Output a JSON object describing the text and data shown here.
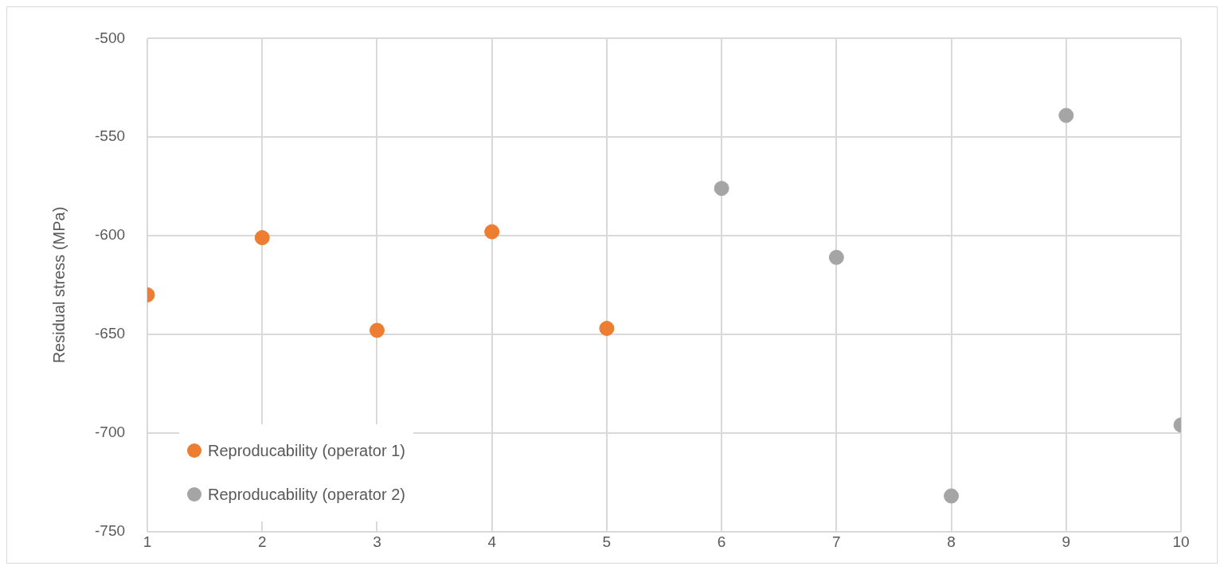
{
  "chart_data": {
    "type": "scatter",
    "ylabel": "Residual stress (MPa)",
    "xlim": [
      1,
      10
    ],
    "xticks": [
      1,
      2,
      3,
      4,
      5,
      6,
      7,
      8,
      9,
      10
    ],
    "ylim": [
      -750,
      -500
    ],
    "yticks": [
      -750,
      -700,
      -650,
      -600,
      -550,
      -500
    ],
    "grid": true,
    "legend": "bottom left",
    "marker": "circle",
    "series": [
      {
        "name": "Reproducability (operator 1)",
        "color": "#ed7d31",
        "x": [
          1,
          2,
          3,
          4,
          5
        ],
        "values": [
          -630,
          -601,
          -648,
          -598,
          -647
        ]
      },
      {
        "name": "Reproducability (operator 2)",
        "color": "#a5a5a5",
        "x": [
          6,
          7,
          8,
          9,
          10
        ],
        "values": [
          -576,
          -611,
          -732,
          -539,
          -696
        ]
      }
    ]
  }
}
